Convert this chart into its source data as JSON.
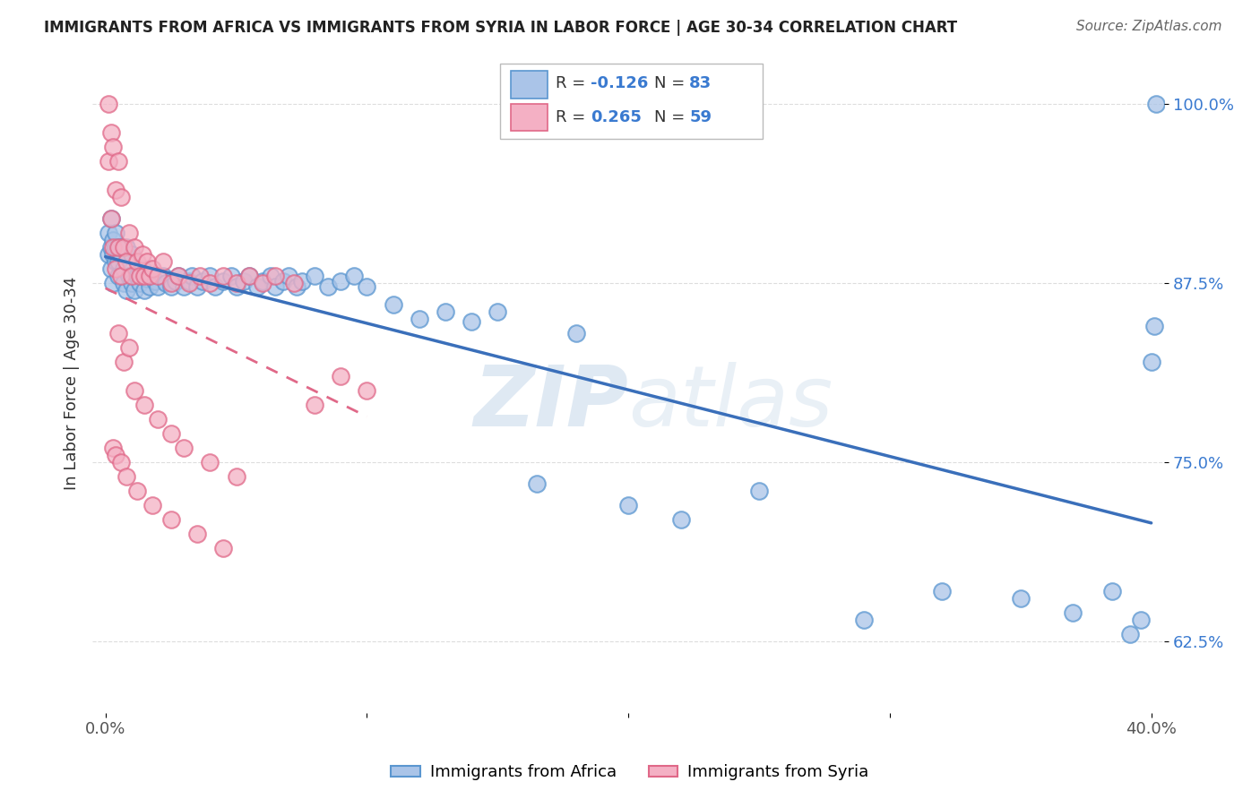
{
  "title": "IMMIGRANTS FROM AFRICA VS IMMIGRANTS FROM SYRIA IN LABOR FORCE | AGE 30-34 CORRELATION CHART",
  "source": "Source: ZipAtlas.com",
  "ylabel": "In Labor Force | Age 30-34",
  "xlim": [
    -0.005,
    0.405
  ],
  "ylim": [
    0.575,
    1.035
  ],
  "yticks_right": [
    0.625,
    0.75,
    0.875,
    1.0
  ],
  "ytick_right_labels": [
    "62.5%",
    "75.0%",
    "87.5%",
    "100.0%"
  ],
  "africa_color": "#aac4e8",
  "syria_color": "#f4b0c4",
  "africa_edge": "#5a96d0",
  "syria_edge": "#e06888",
  "africa_line_color": "#3a6fba",
  "syria_line_color": "#e06888",
  "watermark": "ZIPatlas",
  "watermark_color": "#c8d8e8",
  "legend_label_africa": "Immigrants from Africa",
  "legend_label_syria": "Immigrants from Syria",
  "africa_R": -0.126,
  "africa_N": 83,
  "syria_R": 0.265,
  "syria_N": 59,
  "africa_x": [
    0.001,
    0.001,
    0.002,
    0.002,
    0.002,
    0.003,
    0.003,
    0.003,
    0.004,
    0.004,
    0.004,
    0.005,
    0.005,
    0.005,
    0.006,
    0.006,
    0.007,
    0.007,
    0.008,
    0.008,
    0.009,
    0.01,
    0.01,
    0.011,
    0.012,
    0.013,
    0.014,
    0.015,
    0.016,
    0.017,
    0.018,
    0.019,
    0.02,
    0.022,
    0.023,
    0.025,
    0.027,
    0.028,
    0.03,
    0.032,
    0.033,
    0.035,
    0.037,
    0.04,
    0.042,
    0.045,
    0.048,
    0.05,
    0.053,
    0.055,
    0.058,
    0.06,
    0.063,
    0.065,
    0.068,
    0.07,
    0.073,
    0.075,
    0.08,
    0.085,
    0.09,
    0.095,
    0.1,
    0.11,
    0.12,
    0.13,
    0.14,
    0.15,
    0.165,
    0.18,
    0.2,
    0.22,
    0.25,
    0.29,
    0.32,
    0.35,
    0.37,
    0.385,
    0.392,
    0.396,
    0.4,
    0.401,
    0.402
  ],
  "africa_y": [
    0.895,
    0.91,
    0.885,
    0.9,
    0.92,
    0.895,
    0.905,
    0.875,
    0.9,
    0.91,
    0.89,
    0.9,
    0.89,
    0.88,
    0.895,
    0.9,
    0.885,
    0.875,
    0.87,
    0.9,
    0.88,
    0.895,
    0.875,
    0.87,
    0.88,
    0.875,
    0.885,
    0.87,
    0.878,
    0.872,
    0.88,
    0.876,
    0.872,
    0.88,
    0.875,
    0.872,
    0.876,
    0.88,
    0.872,
    0.876,
    0.88,
    0.872,
    0.876,
    0.88,
    0.872,
    0.876,
    0.88,
    0.872,
    0.876,
    0.88,
    0.872,
    0.876,
    0.88,
    0.872,
    0.876,
    0.88,
    0.872,
    0.876,
    0.88,
    0.872,
    0.876,
    0.88,
    0.872,
    0.86,
    0.85,
    0.855,
    0.848,
    0.855,
    0.735,
    0.84,
    0.72,
    0.71,
    0.73,
    0.64,
    0.66,
    0.655,
    0.645,
    0.66,
    0.63,
    0.64,
    0.82,
    0.845,
    1.0
  ],
  "syria_x": [
    0.001,
    0.001,
    0.002,
    0.002,
    0.003,
    0.003,
    0.004,
    0.004,
    0.005,
    0.005,
    0.006,
    0.006,
    0.007,
    0.008,
    0.009,
    0.01,
    0.011,
    0.012,
    0.013,
    0.014,
    0.015,
    0.016,
    0.017,
    0.018,
    0.02,
    0.022,
    0.025,
    0.028,
    0.032,
    0.036,
    0.04,
    0.045,
    0.05,
    0.055,
    0.06,
    0.065,
    0.072,
    0.08,
    0.09,
    0.1,
    0.005,
    0.007,
    0.009,
    0.011,
    0.015,
    0.02,
    0.025,
    0.03,
    0.04,
    0.05,
    0.003,
    0.004,
    0.006,
    0.008,
    0.012,
    0.018,
    0.025,
    0.035,
    0.045
  ],
  "syria_y": [
    1.0,
    0.96,
    0.98,
    0.92,
    0.97,
    0.9,
    0.94,
    0.885,
    0.96,
    0.9,
    0.935,
    0.88,
    0.9,
    0.89,
    0.91,
    0.88,
    0.9,
    0.89,
    0.88,
    0.895,
    0.88,
    0.89,
    0.88,
    0.885,
    0.88,
    0.89,
    0.875,
    0.88,
    0.875,
    0.88,
    0.875,
    0.88,
    0.875,
    0.88,
    0.875,
    0.88,
    0.875,
    0.79,
    0.81,
    0.8,
    0.84,
    0.82,
    0.83,
    0.8,
    0.79,
    0.78,
    0.77,
    0.76,
    0.75,
    0.74,
    0.76,
    0.755,
    0.75,
    0.74,
    0.73,
    0.72,
    0.71,
    0.7,
    0.69
  ]
}
